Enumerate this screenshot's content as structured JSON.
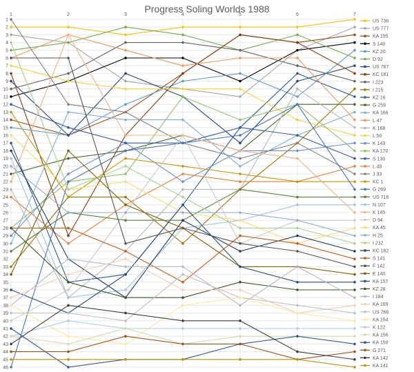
{
  "chart_data": {
    "type": "line",
    "title": "Progress Soling Worlds 1988",
    "xlabel": "",
    "ylabel": "",
    "x": [
      1,
      2,
      3,
      4,
      5,
      6,
      7
    ],
    "xlim": [
      1,
      7
    ],
    "ylim": [
      1,
      46
    ],
    "y_reversed": true,
    "y_ticks": [
      1,
      2,
      3,
      4,
      5,
      6,
      7,
      8,
      9,
      10,
      11,
      12,
      13,
      14,
      15,
      16,
      17,
      18,
      19,
      20,
      21,
      22,
      23,
      24,
      25,
      26,
      27,
      28,
      29,
      30,
      31,
      32,
      33,
      34,
      35,
      36,
      37,
      38,
      39,
      40,
      41,
      42,
      43,
      44,
      45,
      46
    ],
    "grid": true,
    "legend_position": "right",
    "series": [
      {
        "name": "US 736",
        "color": "#FFC000",
        "values": [
          2,
          2,
          3,
          2,
          2,
          2,
          1
        ]
      },
      {
        "name": "US 777",
        "color": "#A5A5A5",
        "values": [
          3,
          4,
          9,
          10,
          11,
          5,
          2
        ]
      },
      {
        "name": "KA 155",
        "color": "#9E480E",
        "values": [
          14,
          16,
          13,
          8,
          3,
          4,
          3
        ]
      },
      {
        "name": "S 140",
        "color": "#000000",
        "values": [
          11,
          9,
          6,
          6,
          9,
          5,
          4
        ]
      },
      {
        "name": "KZ 20",
        "color": "#5B9BD5",
        "values": [
          15,
          16,
          12,
          9,
          8,
          11,
          5
        ]
      },
      {
        "name": "D 92",
        "color": "#70AD47",
        "values": [
          5,
          4,
          2,
          3,
          5,
          3,
          6
        ]
      },
      {
        "name": "US 787",
        "color": "#264478",
        "values": [
          9,
          16,
          8,
          11,
          17,
          9,
          7
        ]
      },
      {
        "name": "KC 181",
        "color": "#843C0C",
        "values": [
          8,
          29,
          16,
          8,
          3,
          4,
          8
        ]
      },
      {
        "name": "I 223",
        "color": "#636363",
        "values": [
          10,
          8,
          4,
          4,
          5,
          7,
          9
        ]
      },
      {
        "name": "I 215",
        "color": "#997300",
        "values": [
          33,
          24,
          24,
          30,
          23,
          17,
          10
        ]
      },
      {
        "name": "KZ 16",
        "color": "#255E91",
        "values": [
          17,
          35,
          34,
          25,
          15,
          8,
          11
        ]
      },
      {
        "name": "G 259",
        "color": "#43682B",
        "values": [
          21,
          19,
          18,
          16,
          18,
          12,
          12
        ]
      },
      {
        "name": "KA 166",
        "color": "#7CAFDD",
        "values": [
          30,
          13,
          14,
          14,
          20,
          16,
          13
        ]
      },
      {
        "name": "L 47",
        "color": "#F1975A",
        "values": [
          6,
          3,
          5,
          7,
          6,
          6,
          14
        ]
      },
      {
        "name": "K 168",
        "color": "#B7B7B7",
        "values": [
          23,
          37,
          31,
          23,
          23,
          10,
          15
        ]
      },
      {
        "name": "L 50",
        "color": "#FFCD33",
        "values": [
          7,
          9,
          10,
          10,
          10,
          14,
          16
        ]
      },
      {
        "name": "K 143",
        "color": "#698ED0",
        "values": [
          29,
          21,
          17,
          22,
          18,
          18,
          17
        ]
      },
      {
        "name": "KA 170",
        "color": "#8CC168",
        "values": [
          28,
          22,
          21,
          11,
          14,
          12,
          18
        ]
      },
      {
        "name": "S 130",
        "color": "#335AA1",
        "values": [
          12,
          15,
          17,
          17,
          15,
          16,
          19
        ]
      },
      {
        "name": "L 48",
        "color": "#ED7D31",
        "values": [
          24,
          30,
          25,
          21,
          22,
          22,
          20
        ]
      },
      {
        "name": "J 33",
        "color": "#7F7F7F",
        "values": [
          1,
          12,
          13,
          17,
          19,
          17,
          21
        ]
      },
      {
        "name": "KC 1",
        "color": "#C69600",
        "values": [
          13,
          24,
          19,
          20,
          21,
          22,
          22
        ]
      },
      {
        "name": "G 269",
        "color": "#4472C4",
        "values": [
          46,
          22,
          18,
          17,
          16,
          12,
          23
        ]
      },
      {
        "name": "US 716",
        "color": "#548235",
        "values": [
          31,
          26,
          27,
          27,
          23,
          24,
          24
        ]
      },
      {
        "name": "N 107",
        "color": "#9BC3E6",
        "values": [
          19,
          37,
          36,
          28,
          27,
          25,
          25
        ]
      },
      {
        "name": "K 145",
        "color": "#F4B183",
        "values": [
          22,
          3,
          16,
          16,
          18,
          19,
          26
        ]
      },
      {
        "name": "D 94",
        "color": "#C9C9C9",
        "values": [
          40,
          36,
          26,
          16,
          30,
          27,
          27
        ]
      },
      {
        "name": "KA 45",
        "color": "#FFD966",
        "values": [
          16,
          23,
          22,
          26,
          27,
          30,
          28
        ]
      },
      {
        "name": "H 25",
        "color": "#8FAADC",
        "values": [
          20,
          26,
          26,
          26,
          26,
          27,
          29
        ]
      },
      {
        "name": "I 232",
        "color": "#A9D18E",
        "values": [
          4,
          23,
          20,
          24,
          28,
          28,
          30
        ]
      },
      {
        "name": "KC 182",
        "color": "#203864",
        "values": [
          18,
          32,
          37,
          27,
          31,
          29,
          31
        ]
      },
      {
        "name": "S 141",
        "color": "#C55A11",
        "values": [
          28,
          28,
          31,
          35,
          29,
          30,
          32
        ]
      },
      {
        "name": "F 142",
        "color": "#525252",
        "values": [
          6,
          6,
          30,
          28,
          30,
          31,
          33
        ]
      },
      {
        "name": "E 140",
        "color": "#806000",
        "values": [
          34,
          18,
          25,
          28,
          33,
          33,
          34
        ]
      },
      {
        "name": "KA 157",
        "color": "#1F4E79",
        "values": [
          36,
          39,
          34,
          25,
          33,
          35,
          35
        ]
      },
      {
        "name": "KZ 28",
        "color": "#375623",
        "values": [
          28,
          35,
          37,
          37,
          35,
          36,
          36
        ]
      },
      {
        "name": "I 184",
        "color": "#ADB9CA",
        "values": [
          38,
          32,
          33,
          33,
          38,
          33,
          37
        ]
      },
      {
        "name": "KA 169",
        "color": "#F8CBAD",
        "values": [
          37,
          34,
          32,
          36,
          36,
          39,
          38
        ]
      },
      {
        "name": "US 768",
        "color": "#BFBFBF",
        "values": [
          39,
          39,
          40,
          34,
          37,
          38,
          39
        ]
      },
      {
        "name": "KA 154",
        "color": "#FFE699",
        "values": [
          38,
          42,
          43,
          38,
          37,
          39,
          40
        ]
      },
      {
        "name": "K 122",
        "color": "#B4C7E7",
        "values": [
          42,
          40,
          41,
          41,
          41,
          41,
          41
        ]
      },
      {
        "name": "KA 156",
        "color": "#C5E0B4",
        "values": [
          42,
          43,
          41,
          43,
          42,
          42,
          42
        ]
      },
      {
        "name": "KA 159",
        "color": "#2F5597",
        "values": [
          41,
          46,
          45,
          45,
          43,
          42,
          43
        ]
      },
      {
        "name": "G 271",
        "color": "#A54F0F",
        "values": [
          44,
          44,
          42,
          43,
          43,
          45,
          44
        ]
      },
      {
        "name": "KA 142",
        "color": "#3B3B3B",
        "values": [
          43,
          38,
          39,
          40,
          40,
          44,
          45
        ]
      },
      {
        "name": "KA 141",
        "color": "#BF9000",
        "values": [
          45,
          45,
          45,
          45,
          45,
          45,
          46
        ]
      }
    ]
  }
}
